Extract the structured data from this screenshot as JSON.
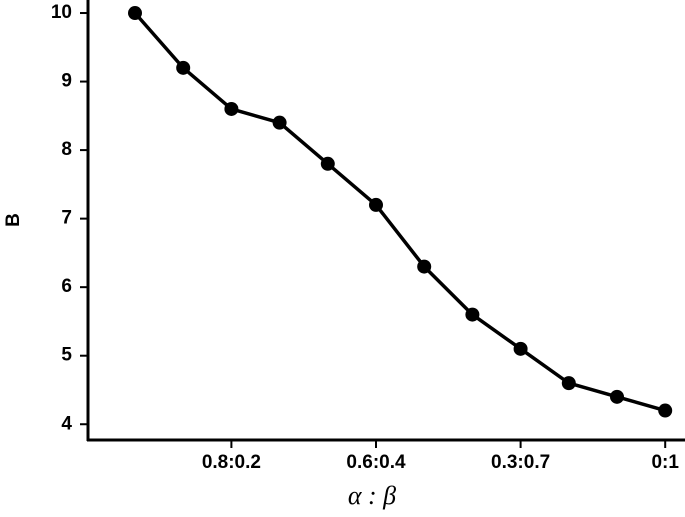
{
  "chart_data": {
    "type": "line",
    "x_label": "α : β",
    "y_label": "B",
    "categories": [
      null,
      null,
      "0.8:0.2",
      null,
      null,
      "0.6:0.4",
      null,
      null,
      "0.3:0.7",
      null,
      null,
      "0:1"
    ],
    "series": [
      {
        "name": "B",
        "color": "#000000",
        "values": [
          10,
          9.2,
          8.6,
          8.4,
          7.8,
          7.2,
          6.3,
          5.6,
          5.1,
          4.6,
          4.4,
          4.2
        ]
      }
    ],
    "ylim": [
      3.77,
      10.19
    ],
    "yticks": [
      4,
      5,
      6,
      7,
      8,
      9,
      10
    ],
    "grid": false
  }
}
